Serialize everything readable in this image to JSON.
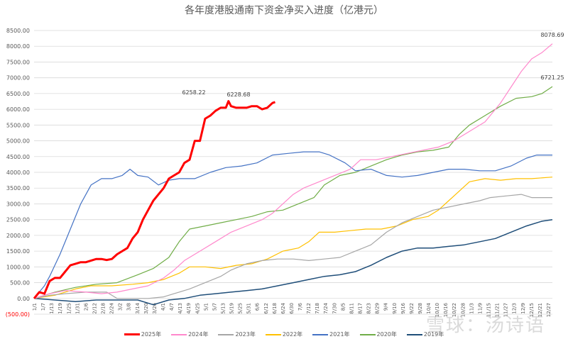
{
  "chart_data": {
    "type": "line",
    "title": "各年度港股通南下资金净买入进度（亿港元）",
    "xlabel": "",
    "ylabel": "",
    "ylim": [
      -500,
      8500
    ],
    "yticks": [
      "(500.00)",
      "0.00",
      "500.00",
      "1000.00",
      "1500.00",
      "2000.00",
      "2500.00",
      "3000.00",
      "3500.00",
      "4000.00",
      "4500.00",
      "5000.00",
      "5500.00",
      "6000.00",
      "6500.00",
      "7000.00",
      "7500.00",
      "8000.00",
      "8500.00"
    ],
    "xticks": [
      "1/1",
      "1/7",
      "1/13",
      "1/19",
      "1/25",
      "1/31",
      "2/6",
      "2/12",
      "2/18",
      "2/24",
      "3/2",
      "3/8",
      "3/14",
      "3/20",
      "3/26",
      "4/1",
      "4/7",
      "4/13",
      "4/19",
      "4/25",
      "5/1",
      "5/7",
      "5/13",
      "5/19",
      "5/25",
      "5/31",
      "6/6",
      "6/12",
      "6/18",
      "6/24",
      "6/30",
      "7/6",
      "7/12",
      "7/18",
      "7/24",
      "7/30",
      "8/5",
      "8/11",
      "8/17",
      "8/23",
      "8/29",
      "9/4",
      "9/10",
      "9/16",
      "9/22",
      "9/28",
      "10/4",
      "10/10",
      "10/16",
      "10/22",
      "10/28",
      "11/3",
      "11/9",
      "11/15",
      "11/21",
      "11/27",
      "12/3",
      "12/9",
      "12/15",
      "12/21",
      "12/27"
    ],
    "grid": true,
    "legend_position": "bottom",
    "annotations": [
      {
        "text": "6258.22",
        "series": "2025年"
      },
      {
        "text": "6228.68",
        "series": "2025年"
      },
      {
        "text": "8078.69",
        "series": "2024年"
      },
      {
        "text": "6721.25",
        "series": "2020年"
      }
    ],
    "x_unit": "day_of_year_fraction",
    "series": [
      {
        "name": "2025年",
        "color": "#ff0000",
        "width": 3,
        "points": [
          [
            0,
            0
          ],
          [
            0.01,
            200
          ],
          [
            0.02,
            150
          ],
          [
            0.03,
            550
          ],
          [
            0.04,
            650
          ],
          [
            0.05,
            650
          ],
          [
            0.06,
            850
          ],
          [
            0.07,
            1050
          ],
          [
            0.08,
            1100
          ],
          [
            0.09,
            1150
          ],
          [
            0.1,
            1150
          ],
          [
            0.11,
            1200
          ],
          [
            0.12,
            1250
          ],
          [
            0.13,
            1250
          ],
          [
            0.14,
            1220
          ],
          [
            0.15,
            1250
          ],
          [
            0.16,
            1400
          ],
          [
            0.17,
            1500
          ],
          [
            0.18,
            1600
          ],
          [
            0.19,
            1900
          ],
          [
            0.2,
            2100
          ],
          [
            0.21,
            2500
          ],
          [
            0.22,
            2800
          ],
          [
            0.23,
            3100
          ],
          [
            0.24,
            3300
          ],
          [
            0.25,
            3500
          ],
          [
            0.26,
            3800
          ],
          [
            0.27,
            3900
          ],
          [
            0.28,
            4000
          ],
          [
            0.29,
            4300
          ],
          [
            0.3,
            4400
          ],
          [
            0.31,
            5000
          ],
          [
            0.32,
            5000
          ],
          [
            0.33,
            5700
          ],
          [
            0.34,
            5800
          ],
          [
            0.35,
            5950
          ],
          [
            0.36,
            6050
          ],
          [
            0.37,
            6050
          ],
          [
            0.375,
            6258.22
          ],
          [
            0.38,
            6100
          ],
          [
            0.39,
            6050
          ],
          [
            0.4,
            6050
          ],
          [
            0.41,
            6050
          ],
          [
            0.42,
            6100
          ],
          [
            0.43,
            6100
          ],
          [
            0.44,
            6000
          ],
          [
            0.45,
            6050
          ],
          [
            0.46,
            6200
          ],
          [
            0.465,
            6228.68
          ]
        ]
      },
      {
        "name": "2024年",
        "color": "#ff88cc",
        "width": 1.2,
        "points": [
          [
            0,
            0
          ],
          [
            0.03,
            150
          ],
          [
            0.06,
            250
          ],
          [
            0.1,
            200
          ],
          [
            0.13,
            150
          ],
          [
            0.16,
            200
          ],
          [
            0.19,
            300
          ],
          [
            0.22,
            400
          ],
          [
            0.25,
            650
          ],
          [
            0.27,
            900
          ],
          [
            0.29,
            1200
          ],
          [
            0.32,
            1500
          ],
          [
            0.35,
            1800
          ],
          [
            0.38,
            2100
          ],
          [
            0.41,
            2300
          ],
          [
            0.44,
            2500
          ],
          [
            0.46,
            2700
          ],
          [
            0.48,
            3000
          ],
          [
            0.5,
            3300
          ],
          [
            0.52,
            3500
          ],
          [
            0.55,
            3700
          ],
          [
            0.58,
            3900
          ],
          [
            0.61,
            4100
          ],
          [
            0.63,
            4400
          ],
          [
            0.66,
            4400
          ],
          [
            0.69,
            4500
          ],
          [
            0.72,
            4600
          ],
          [
            0.75,
            4700
          ],
          [
            0.78,
            4800
          ],
          [
            0.81,
            5000
          ],
          [
            0.84,
            5300
          ],
          [
            0.87,
            5600
          ],
          [
            0.9,
            6200
          ],
          [
            0.92,
            6700
          ],
          [
            0.94,
            7200
          ],
          [
            0.96,
            7600
          ],
          [
            0.98,
            7800
          ],
          [
            1.0,
            8078.69
          ]
        ]
      },
      {
        "name": "2023年",
        "color": "#a6a6a6",
        "width": 1.2,
        "points": [
          [
            0,
            0
          ],
          [
            0.03,
            100
          ],
          [
            0.06,
            150
          ],
          [
            0.1,
            200
          ],
          [
            0.14,
            200
          ],
          [
            0.16,
            0
          ],
          [
            0.19,
            0
          ],
          [
            0.22,
            0
          ],
          [
            0.25,
            50
          ],
          [
            0.27,
            150
          ],
          [
            0.3,
            300
          ],
          [
            0.33,
            500
          ],
          [
            0.36,
            700
          ],
          [
            0.38,
            900
          ],
          [
            0.41,
            1100
          ],
          [
            0.44,
            1200
          ],
          [
            0.47,
            1250
          ],
          [
            0.5,
            1250
          ],
          [
            0.53,
            1200
          ],
          [
            0.56,
            1250
          ],
          [
            0.59,
            1300
          ],
          [
            0.62,
            1500
          ],
          [
            0.65,
            1700
          ],
          [
            0.68,
            2100
          ],
          [
            0.71,
            2400
          ],
          [
            0.74,
            2600
          ],
          [
            0.77,
            2800
          ],
          [
            0.8,
            2900
          ],
          [
            0.83,
            3000
          ],
          [
            0.86,
            3100
          ],
          [
            0.88,
            3200
          ],
          [
            0.91,
            3250
          ],
          [
            0.94,
            3300
          ],
          [
            0.96,
            3200
          ],
          [
            1.0,
            3200
          ]
        ]
      },
      {
        "name": "2022年",
        "color": "#ffc000",
        "width": 1.2,
        "points": [
          [
            0,
            0
          ],
          [
            0.04,
            100
          ],
          [
            0.08,
            300
          ],
          [
            0.11,
            400
          ],
          [
            0.15,
            400
          ],
          [
            0.19,
            450
          ],
          [
            0.22,
            500
          ],
          [
            0.25,
            600
          ],
          [
            0.28,
            800
          ],
          [
            0.3,
            1000
          ],
          [
            0.33,
            1000
          ],
          [
            0.36,
            950
          ],
          [
            0.39,
            1050
          ],
          [
            0.42,
            1100
          ],
          [
            0.45,
            1250
          ],
          [
            0.48,
            1500
          ],
          [
            0.51,
            1600
          ],
          [
            0.53,
            1800
          ],
          [
            0.55,
            2100
          ],
          [
            0.58,
            2100
          ],
          [
            0.61,
            2150
          ],
          [
            0.64,
            2200
          ],
          [
            0.67,
            2200
          ],
          [
            0.7,
            2300
          ],
          [
            0.73,
            2500
          ],
          [
            0.76,
            2600
          ],
          [
            0.78,
            2800
          ],
          [
            0.8,
            3100
          ],
          [
            0.82,
            3400
          ],
          [
            0.84,
            3700
          ],
          [
            0.87,
            3800
          ],
          [
            0.9,
            3750
          ],
          [
            0.93,
            3800
          ],
          [
            0.96,
            3800
          ],
          [
            1.0,
            3850
          ]
        ]
      },
      {
        "name": "2021年",
        "color": "#4472c4",
        "width": 1.2,
        "points": [
          [
            0,
            0
          ],
          [
            0.02,
            400
          ],
          [
            0.03,
            700
          ],
          [
            0.05,
            1400
          ],
          [
            0.07,
            2200
          ],
          [
            0.09,
            3000
          ],
          [
            0.11,
            3600
          ],
          [
            0.13,
            3800
          ],
          [
            0.15,
            3800
          ],
          [
            0.17,
            3900
          ],
          [
            0.185,
            4100
          ],
          [
            0.2,
            3900
          ],
          [
            0.22,
            3850
          ],
          [
            0.24,
            3600
          ],
          [
            0.26,
            3750
          ],
          [
            0.28,
            3800
          ],
          [
            0.31,
            3800
          ],
          [
            0.34,
            4000
          ],
          [
            0.37,
            4150
          ],
          [
            0.4,
            4200
          ],
          [
            0.43,
            4300
          ],
          [
            0.46,
            4550
          ],
          [
            0.49,
            4600
          ],
          [
            0.52,
            4650
          ],
          [
            0.55,
            4650
          ],
          [
            0.57,
            4550
          ],
          [
            0.6,
            4300
          ],
          [
            0.62,
            4050
          ],
          [
            0.65,
            4100
          ],
          [
            0.68,
            3900
          ],
          [
            0.71,
            3850
          ],
          [
            0.74,
            3900
          ],
          [
            0.77,
            4000
          ],
          [
            0.8,
            4100
          ],
          [
            0.83,
            4100
          ],
          [
            0.86,
            4050
          ],
          [
            0.89,
            4050
          ],
          [
            0.92,
            4200
          ],
          [
            0.95,
            4450
          ],
          [
            0.97,
            4550
          ],
          [
            1.0,
            4550
          ]
        ]
      },
      {
        "name": "2020年",
        "color": "#70ad47",
        "width": 1.2,
        "points": [
          [
            0,
            0
          ],
          [
            0.04,
            200
          ],
          [
            0.08,
            350
          ],
          [
            0.12,
            450
          ],
          [
            0.16,
            500
          ],
          [
            0.2,
            750
          ],
          [
            0.23,
            950
          ],
          [
            0.26,
            1300
          ],
          [
            0.28,
            1800
          ],
          [
            0.3,
            2200
          ],
          [
            0.33,
            2300
          ],
          [
            0.36,
            2400
          ],
          [
            0.39,
            2500
          ],
          [
            0.42,
            2600
          ],
          [
            0.45,
            2750
          ],
          [
            0.48,
            2800
          ],
          [
            0.51,
            3000
          ],
          [
            0.54,
            3200
          ],
          [
            0.56,
            3600
          ],
          [
            0.59,
            3900
          ],
          [
            0.62,
            4000
          ],
          [
            0.65,
            4200
          ],
          [
            0.68,
            4400
          ],
          [
            0.71,
            4550
          ],
          [
            0.74,
            4650
          ],
          [
            0.77,
            4700
          ],
          [
            0.8,
            4800
          ],
          [
            0.82,
            5200
          ],
          [
            0.84,
            5500
          ],
          [
            0.87,
            5800
          ],
          [
            0.9,
            6100
          ],
          [
            0.93,
            6350
          ],
          [
            0.96,
            6400
          ],
          [
            0.98,
            6500
          ],
          [
            1.0,
            6721.25
          ]
        ]
      },
      {
        "name": "2019年",
        "color": "#1f4e79",
        "width": 1.5,
        "points": [
          [
            0,
            0
          ],
          [
            0.04,
            -50
          ],
          [
            0.08,
            -100
          ],
          [
            0.12,
            -50
          ],
          [
            0.16,
            -50
          ],
          [
            0.2,
            -50
          ],
          [
            0.23,
            -200
          ],
          [
            0.26,
            -50
          ],
          [
            0.29,
            0
          ],
          [
            0.32,
            100
          ],
          [
            0.35,
            150
          ],
          [
            0.38,
            200
          ],
          [
            0.41,
            250
          ],
          [
            0.44,
            300
          ],
          [
            0.47,
            400
          ],
          [
            0.5,
            500
          ],
          [
            0.53,
            600
          ],
          [
            0.56,
            700
          ],
          [
            0.59,
            750
          ],
          [
            0.62,
            850
          ],
          [
            0.65,
            1050
          ],
          [
            0.68,
            1300
          ],
          [
            0.71,
            1500
          ],
          [
            0.74,
            1600
          ],
          [
            0.77,
            1600
          ],
          [
            0.8,
            1650
          ],
          [
            0.83,
            1700
          ],
          [
            0.86,
            1800
          ],
          [
            0.89,
            1900
          ],
          [
            0.92,
            2100
          ],
          [
            0.95,
            2300
          ],
          [
            0.98,
            2450
          ],
          [
            1.0,
            2500
          ]
        ]
      }
    ]
  },
  "legend": [
    {
      "label": "2025年",
      "color": "#ff0000"
    },
    {
      "label": "2024年",
      "color": "#ff88cc"
    },
    {
      "label": "2023年",
      "color": "#a6a6a6"
    },
    {
      "label": "2022年",
      "color": "#ffc000"
    },
    {
      "label": "2021年",
      "color": "#4472c4"
    },
    {
      "label": "2020年",
      "color": "#70ad47"
    },
    {
      "label": "2019年",
      "color": "#1f4e79"
    }
  ],
  "watermark": "雪球：汤诗语"
}
